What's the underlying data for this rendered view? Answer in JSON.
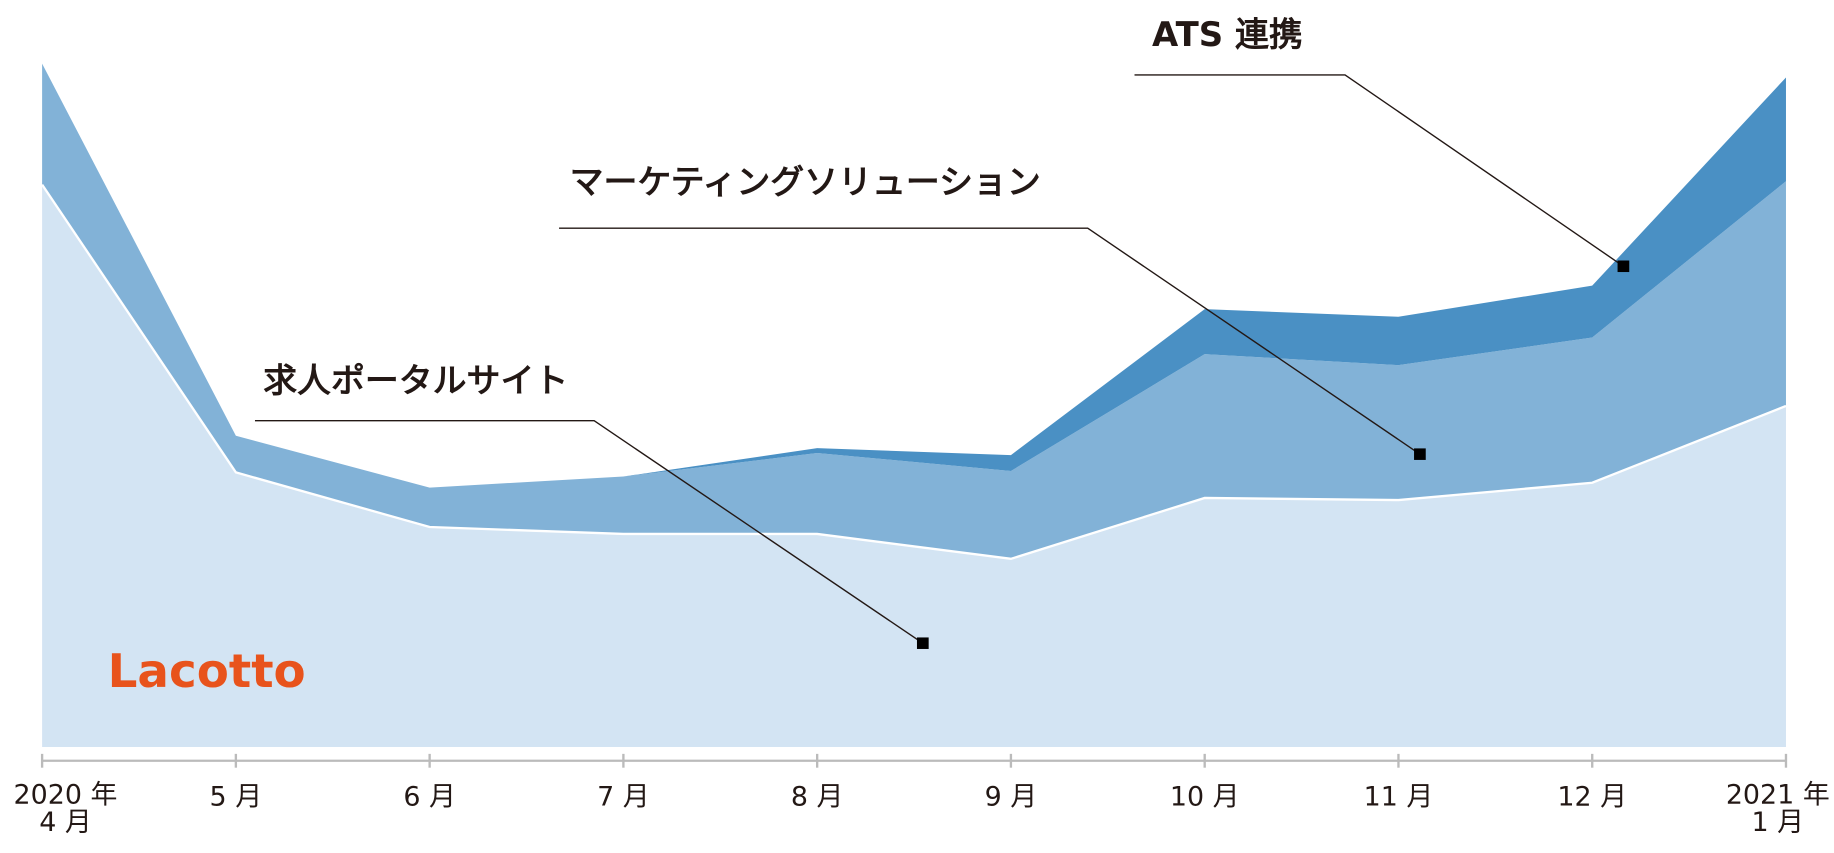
{
  "chart_data": {
    "type": "area",
    "categories": [
      "2020 年\n4 月",
      "5 月",
      "6 月",
      "7 月",
      "8 月",
      "9 月",
      "10 月",
      "11 月",
      "12 月",
      "2021 年\n1 月"
    ],
    "ylim": [
      0,
      100
    ],
    "stacked": true,
    "series": [
      {
        "name": "求人ポータルサイト",
        "color": "#d3e4f3",
        "values": [
          81.3,
          39.7,
          31.8,
          30.8,
          30.8,
          27.2,
          36,
          35.7,
          38.2,
          49.3
        ]
      },
      {
        "name": "マーケティングソリューション",
        "color": "#82b2d7",
        "values": [
          17.5,
          5.3,
          5.7,
          8.3,
          11.7,
          12.7,
          20.8,
          19.5,
          21,
          32.5
        ]
      },
      {
        "name": "ATS 連携",
        "color": "#4a90c4",
        "values": [
          0,
          0,
          0,
          0,
          0.7,
          2.3,
          6.5,
          7,
          7.5,
          15
        ]
      }
    ],
    "logo": "Lacotto"
  }
}
